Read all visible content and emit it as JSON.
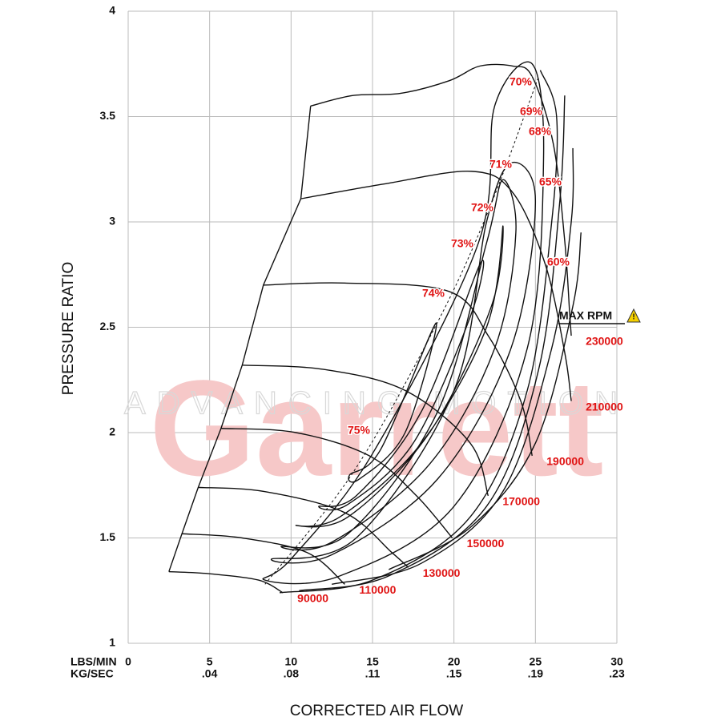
{
  "chart_data": {
    "type": "line",
    "watermark": {
      "title": "Garrett",
      "subtitle": "ADVANCING MOTION"
    },
    "x_label": "CORRECTED AIR FLOW",
    "y_label": "PRESSURE RATIO",
    "x_unit": "LBS/MIN",
    "x2_unit": "KG/SEC",
    "xlim": [
      0,
      30
    ],
    "ylim": [
      1,
      4
    ],
    "xticks": [
      0,
      5,
      10,
      15,
      20,
      25,
      30
    ],
    "x2ticks": [
      {
        "value": 5,
        "label": ".04"
      },
      {
        "value": 10,
        "label": ".08"
      },
      {
        "value": 15,
        "label": ".11"
      },
      {
        "value": 20,
        "label": ".15"
      },
      {
        "value": 25,
        "label": ".19"
      },
      {
        "value": 30,
        "label": ".23"
      }
    ],
    "yticks": [
      1,
      1.5,
      2,
      2.5,
      3,
      3.5,
      4
    ],
    "grid": true,
    "line_color": "#111111",
    "label_color": "#e01414",
    "max_rpm_label": "MAX RPM",
    "surge_line": {
      "x": [
        2.5,
        3.3,
        4.3,
        5.7,
        7,
        8.3,
        10.6,
        11.2
      ],
      "y": [
        1.34,
        1.52,
        1.74,
        2.02,
        2.32,
        2.7,
        3.11,
        3.55
      ]
    },
    "peak_line": {
      "x": [
        8.4,
        13.8,
        18.9,
        22.1,
        25.2
      ],
      "y": [
        1.28,
        1.81,
        2.51,
        3.05,
        3.69
      ]
    },
    "speed_lines": [
      {
        "name": "90000",
        "x": [
          2.5,
          5,
          8,
          9.5
        ],
        "y": [
          1.34,
          1.33,
          1.3,
          1.24
        ]
      },
      {
        "name": "110000",
        "x": [
          3.3,
          7,
          11,
          13.3
        ],
        "y": [
          1.52,
          1.5,
          1.43,
          1.28
        ]
      },
      {
        "name": "130000",
        "x": [
          4.3,
          8.4,
          13.3,
          16.2,
          17.2
        ],
        "y": [
          1.74,
          1.72,
          1.62,
          1.43,
          1.36
        ]
      },
      {
        "name": "150000",
        "x": [
          5.7,
          10.3,
          14.8,
          17.7,
          19.9
        ],
        "y": [
          2.02,
          2.0,
          1.89,
          1.7,
          1.5
        ]
      },
      {
        "name": "170000",
        "x": [
          7,
          12,
          17,
          21,
          22.1
        ],
        "y": [
          2.32,
          2.3,
          2.2,
          1.95,
          1.7
        ]
      },
      {
        "name": "190000",
        "x": [
          8.3,
          13.3,
          19.7,
          22.1,
          24.1,
          24.8
        ],
        "y": [
          2.7,
          2.71,
          2.67,
          2.46,
          2.15,
          1.89
        ]
      },
      {
        "name": "210000",
        "x": [
          10.6,
          15.7,
          21.1,
          23.6,
          25.6,
          26.8,
          27.2
        ],
        "y": [
          3.11,
          3.18,
          3.24,
          3.14,
          2.8,
          2.38,
          2.15
        ]
      },
      {
        "name": "230000",
        "x": [
          11.2,
          13.8,
          16.7,
          19.7,
          21.6,
          23.6,
          24.8,
          26.1,
          26.8,
          27.1,
          27.2
        ],
        "y": [
          3.55,
          3.6,
          3.61,
          3.67,
          3.74,
          3.74,
          3.69,
          3.37,
          2.91,
          2.57,
          2.46
        ]
      }
    ],
    "efficiency_islands": [
      {
        "name": "75%",
        "closed": true,
        "x": [
          13.6,
          15.5,
          18.9,
          17.0,
          14.2
        ],
        "y": [
          1.8,
          1.92,
          2.52,
          2.0,
          1.78
        ]
      },
      {
        "name": "74%",
        "closed": true,
        "x": [
          11.7,
          14,
          18,
          21.6,
          21.0,
          17.5,
          13.5
        ],
        "y": [
          1.65,
          1.7,
          2.1,
          2.8,
          2.55,
          1.95,
          1.66
        ]
      },
      {
        "name": "73%",
        "closed": true,
        "x": [
          10.3,
          13,
          18,
          22,
          23.0,
          22.3,
          18.5,
          13.5
        ],
        "y": [
          1.56,
          1.6,
          1.95,
          2.5,
          2.98,
          2.6,
          2.0,
          1.6
        ]
      },
      {
        "name": "72%",
        "closed": true,
        "x": [
          9.4,
          12.5,
          18.5,
          22.5,
          23.8,
          23.0,
          22,
          19,
          13.5
        ],
        "y": [
          1.46,
          1.48,
          1.85,
          2.4,
          2.95,
          3.2,
          2.9,
          2.1,
          1.52
        ]
      },
      {
        "name": "71%",
        "closed": true,
        "x": [
          8.8,
          12.5,
          19,
          23.5,
          25,
          23.5,
          22,
          20,
          14
        ],
        "y": [
          1.4,
          1.42,
          1.78,
          2.4,
          3.1,
          3.28,
          3.0,
          2.2,
          1.5
        ]
      },
      {
        "name": "70%",
        "closed": true,
        "x": [
          8.4,
          13,
          20,
          24.5,
          25.5,
          24.8,
          22.5,
          21.5,
          15,
          10
        ],
        "y": [
          1.3,
          1.32,
          1.65,
          2.4,
          3.3,
          3.75,
          3.55,
          2.9,
          1.9,
          1.4
        ]
      },
      {
        "name": "69%",
        "closed": false,
        "x": [
          9.3,
          15,
          21,
          24.5,
          26,
          26.3,
          25.3
        ],
        "y": [
          1.24,
          1.3,
          1.6,
          2.2,
          3.0,
          3.5,
          3.72
        ]
      },
      {
        "name": "68%",
        "closed": false,
        "x": [
          10.5,
          16,
          22,
          25.2,
          26.5,
          26.8
        ],
        "y": [
          1.25,
          1.32,
          1.65,
          2.3,
          3.1,
          3.6
        ]
      },
      {
        "name": "65%",
        "closed": false,
        "x": [
          12.5,
          18,
          23,
          26,
          27.2,
          27.3
        ],
        "y": [
          1.28,
          1.38,
          1.72,
          2.4,
          3.0,
          3.35
        ]
      },
      {
        "name": "60%",
        "closed": false,
        "x": [
          16,
          21,
          25,
          27.3,
          27.8
        ],
        "y": [
          1.35,
          1.55,
          1.95,
          2.6,
          2.95
        ]
      }
    ]
  }
}
